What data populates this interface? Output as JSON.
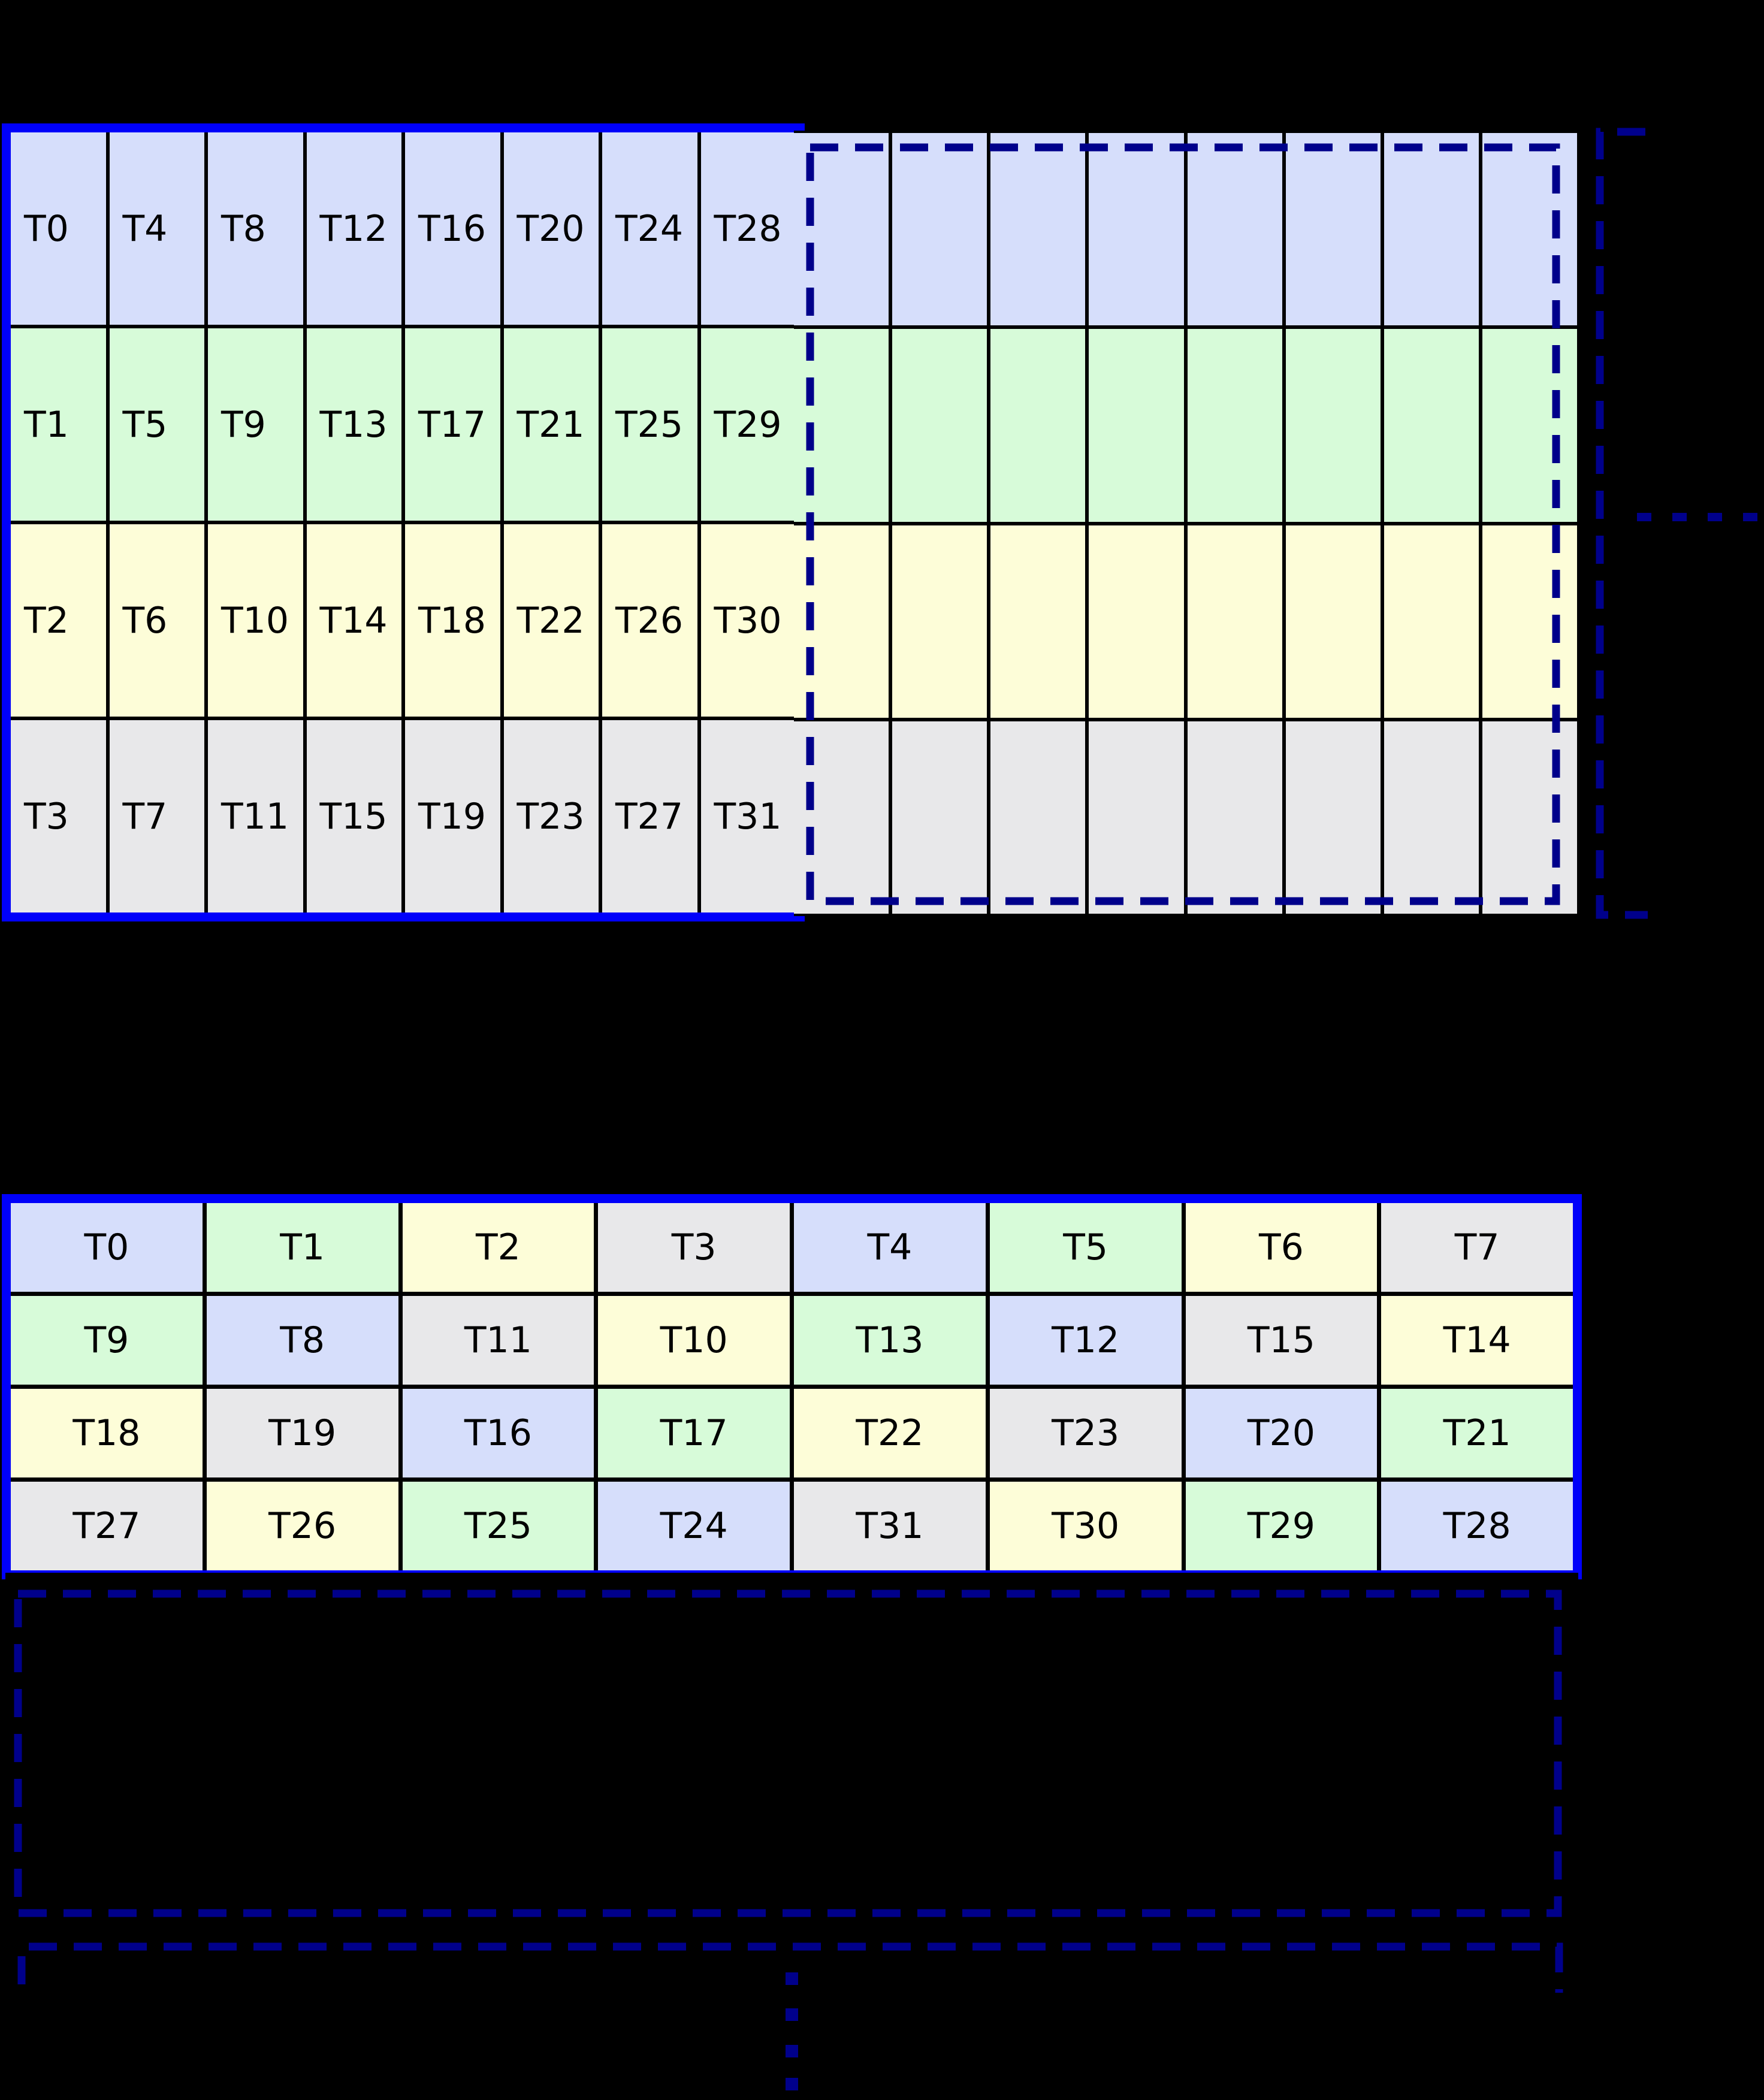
{
  "colors": {
    "blue": "#d6defb",
    "green": "#d7fbd9",
    "yellow": "#fdfdd8",
    "gray": "#e8e8ea",
    "solid_border": "#0000fa",
    "dashed_navy": "#00008b",
    "grid_line": "#000000",
    "background": "#000000"
  },
  "top_left_grid": {
    "description": "column-major thread mapping, 8 columns x 4 rows",
    "labels": [
      [
        "T0",
        "T4",
        "T8",
        "T12",
        "T16",
        "T20",
        "T24",
        "T28"
      ],
      [
        "T1",
        "T5",
        "T9",
        "T13",
        "T17",
        "T21",
        "T25",
        "T29"
      ],
      [
        "T2",
        "T6",
        "T10",
        "T14",
        "T18",
        "T22",
        "T26",
        "T30"
      ],
      [
        "T3",
        "T7",
        "T11",
        "T15",
        "T19",
        "T23",
        "T27",
        "T31"
      ]
    ],
    "row_colors": [
      "blue",
      "green",
      "yellow",
      "gray"
    ]
  },
  "top_right_grid": {
    "description": "unlabeled continuation tile, 8 columns x 4 rows",
    "rows": 4,
    "cols": 8,
    "row_colors": [
      "blue",
      "green",
      "yellow",
      "gray"
    ]
  },
  "bottom_labeled_grid": {
    "description": "swizzled thread mapping, 8 columns x 4 rows",
    "labels": [
      [
        "T0",
        "T1",
        "T2",
        "T3",
        "T4",
        "T5",
        "T6",
        "T7"
      ],
      [
        "T9",
        "T8",
        "T11",
        "T10",
        "T13",
        "T12",
        "T15",
        "T14"
      ],
      [
        "T18",
        "T19",
        "T16",
        "T17",
        "T22",
        "T23",
        "T20",
        "T21"
      ],
      [
        "T27",
        "T26",
        "T25",
        "T24",
        "T31",
        "T30",
        "T29",
        "T28"
      ]
    ],
    "cell_colors": [
      [
        "blue",
        "green",
        "yellow",
        "gray",
        "blue",
        "green",
        "yellow",
        "gray"
      ],
      [
        "green",
        "blue",
        "gray",
        "yellow",
        "green",
        "blue",
        "gray",
        "yellow"
      ],
      [
        "yellow",
        "gray",
        "blue",
        "green",
        "yellow",
        "gray",
        "blue",
        "green"
      ],
      [
        "gray",
        "yellow",
        "green",
        "blue",
        "gray",
        "yellow",
        "green",
        "blue"
      ]
    ]
  },
  "bottom_dashed_grid": {
    "description": "unlabeled continuation tile of swizzled mapping, 8 columns x 4 rows",
    "cell_colors": [
      [
        "blue",
        "green",
        "yellow",
        "gray",
        "blue",
        "green",
        "yellow",
        "gray"
      ],
      [
        "green",
        "blue",
        "gray",
        "yellow",
        "green",
        "blue",
        "gray",
        "yellow"
      ],
      [
        "yellow",
        "gray",
        "blue",
        "green",
        "yellow",
        "gray",
        "blue",
        "green"
      ],
      [
        "gray",
        "yellow",
        "green",
        "blue",
        "gray",
        "yellow",
        "green",
        "blue"
      ]
    ]
  },
  "continuation": {
    "right_dots_count": 4,
    "bottom_dots_count": 4
  }
}
